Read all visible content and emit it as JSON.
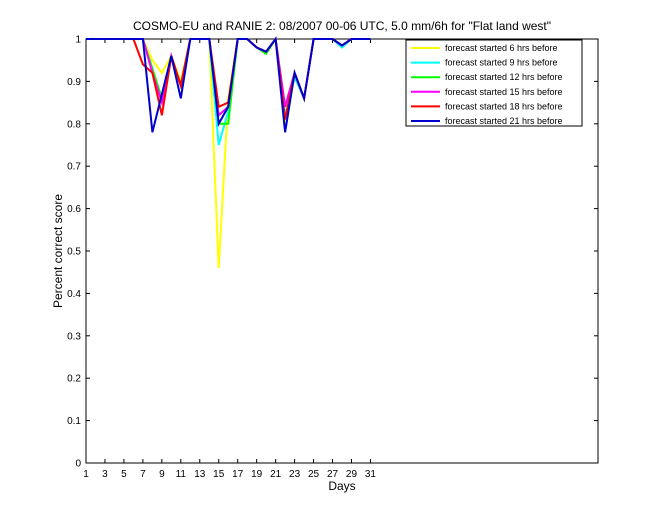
{
  "chart_data": {
    "type": "line",
    "title": "COSMO-EU and RANIE 2: 08/2007 00-06 UTC, 5.0 mm/6h for \"Flat land west\"",
    "xlabel": "Days",
    "ylabel": "Percent correct score",
    "xlim": [
      1,
      55
    ],
    "ylim": [
      0,
      1
    ],
    "x_ticks": [
      "1",
      "3",
      "5",
      "7",
      "9",
      "11",
      "13",
      "15",
      "17",
      "19",
      "21",
      "23",
      "25",
      "27",
      "29",
      "31"
    ],
    "y_ticks": [
      "0",
      "0.1",
      "0.2",
      "0.3",
      "0.4",
      "0.5",
      "0.6",
      "0.7",
      "0.8",
      "0.9",
      "1"
    ],
    "grid": false,
    "legend_position": "top-right",
    "x": [
      1,
      2,
      3,
      4,
      5,
      6,
      7,
      8,
      9,
      10,
      11,
      12,
      13,
      14,
      15,
      16,
      17,
      18,
      19,
      20,
      21,
      22,
      23,
      24,
      25,
      26,
      27,
      28,
      29,
      30,
      31
    ],
    "series": [
      {
        "name": "forecast started 6 hrs before",
        "color": "#ffff00",
        "values": [
          1,
          1,
          1,
          1,
          1,
          1,
          1,
          0.95,
          0.92,
          0.96,
          0.9,
          1,
          1,
          1,
          0.46,
          0.86,
          1,
          1,
          0.98,
          0.97,
          1,
          0.8,
          0.91,
          0.86,
          1,
          1,
          1,
          0.98,
          1,
          1,
          1
        ]
      },
      {
        "name": "forecast started 9 hrs before",
        "color": "#00ffff",
        "values": [
          1,
          1,
          1,
          1,
          1,
          1,
          1,
          0.93,
          0.85,
          0.96,
          0.89,
          1,
          1,
          1,
          0.75,
          0.83,
          1,
          1,
          0.98,
          0.97,
          1,
          0.82,
          0.91,
          0.86,
          1,
          1,
          1,
          0.98,
          1,
          1,
          1
        ]
      },
      {
        "name": "forecast started 12 hrs before",
        "color": "#00ff00",
        "values": [
          1,
          1,
          1,
          1,
          1,
          1,
          1,
          0.93,
          0.86,
          0.96,
          0.89,
          1,
          1,
          1,
          0.8,
          0.8,
          1,
          1,
          0.98,
          0.965,
          1,
          0.84,
          0.92,
          0.86,
          1,
          1,
          1,
          0.985,
          1,
          1,
          1
        ]
      },
      {
        "name": "forecast started 15 hrs before",
        "color": "#ff00ff",
        "values": [
          1,
          1,
          1,
          1,
          1,
          1,
          1,
          0.92,
          0.85,
          0.96,
          0.89,
          1,
          1,
          1,
          0.82,
          0.84,
          1,
          1,
          0.98,
          0.97,
          1,
          0.84,
          0.92,
          0.86,
          1,
          1,
          1,
          0.985,
          1,
          1,
          1
        ]
      },
      {
        "name": "forecast started 18 hrs before",
        "color": "#ff0000",
        "values": [
          1,
          1,
          1,
          1,
          1,
          1,
          0.94,
          0.92,
          0.82,
          0.96,
          0.89,
          1,
          1,
          1,
          0.84,
          0.85,
          1,
          1,
          0.98,
          0.97,
          1,
          0.81,
          0.92,
          0.86,
          1,
          1,
          1,
          0.985,
          1,
          1,
          1
        ]
      },
      {
        "name": "forecast started 21 hrs before",
        "color": "#0000cc",
        "values": [
          1,
          1,
          1,
          1,
          1,
          1,
          1,
          0.78,
          0.87,
          0.96,
          0.86,
          1,
          1,
          1,
          0.8,
          0.84,
          1,
          1,
          0.98,
          0.97,
          1,
          0.78,
          0.92,
          0.86,
          1,
          1,
          1,
          0.985,
          1,
          1,
          1
        ]
      }
    ]
  }
}
